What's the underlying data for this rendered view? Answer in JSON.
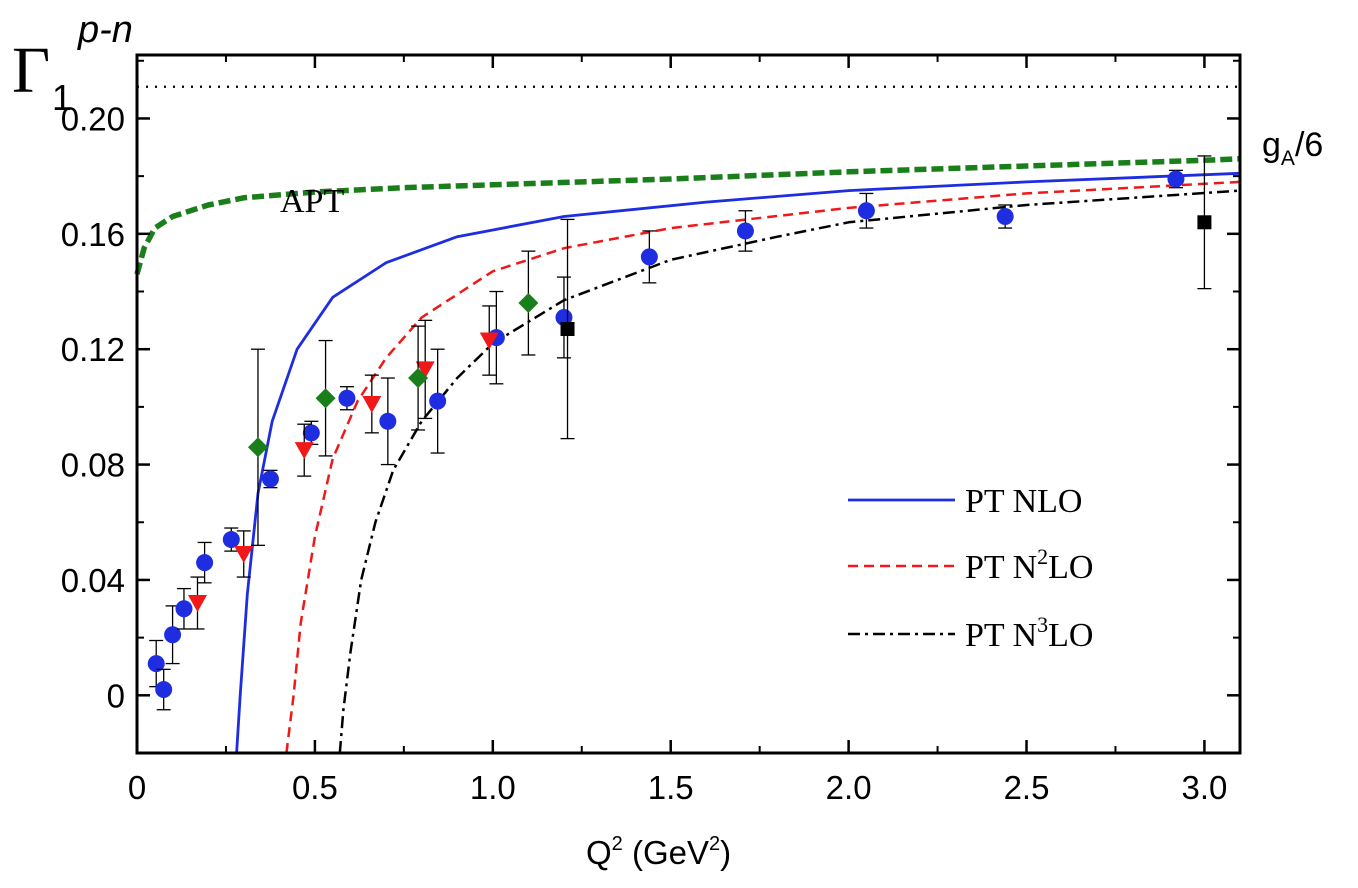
{
  "chart_data": {
    "type": "scatter",
    "ylabel": {
      "main": "Γ",
      "sub": "1",
      "sup": "p-n"
    },
    "xlabel": {
      "q": "Q",
      "sup1": "2",
      "mid": " (GeV",
      "sup2": "2",
      "end": ")"
    },
    "xlim": [
      0,
      3.1
    ],
    "ylim": [
      -0.02,
      0.222
    ],
    "xticks": [
      0,
      0.5,
      1.0,
      1.5,
      2.0,
      2.5,
      3.0
    ],
    "xtick_labels": [
      "0",
      "0.5",
      "1.0",
      "1.5",
      "2.0",
      "2.5",
      "3.0"
    ],
    "yticks": [
      0,
      0.04,
      0.08,
      0.12,
      0.16,
      0.2
    ],
    "ytick_labels": [
      "0",
      "0.04",
      "0.08",
      "0.12",
      "0.16",
      "0.20"
    ],
    "ga_line": {
      "y": 0.211,
      "label_main": "g",
      "label_sub": "A",
      "label_tail": "/6"
    },
    "apt_label": "APT",
    "curves": [
      {
        "key": "apt",
        "name": "APT",
        "color": "#1a7f1a",
        "style": "dash-thick",
        "points": [
          [
            0.0,
            0.146
          ],
          [
            0.02,
            0.155
          ],
          [
            0.05,
            0.162
          ],
          [
            0.1,
            0.166
          ],
          [
            0.2,
            0.17
          ],
          [
            0.3,
            0.1725
          ],
          [
            0.5,
            0.1745
          ],
          [
            0.75,
            0.176
          ],
          [
            1.0,
            0.177
          ],
          [
            1.5,
            0.179
          ],
          [
            2.0,
            0.1815
          ],
          [
            2.5,
            0.1835
          ],
          [
            3.0,
            0.1855
          ],
          [
            3.1,
            0.186
          ]
        ]
      },
      {
        "key": "nlo",
        "name": "PT NLO",
        "color": "#1f2de0",
        "style": "solid",
        "points": [
          [
            0.28,
            -0.02
          ],
          [
            0.29,
            0.0
          ],
          [
            0.31,
            0.035
          ],
          [
            0.34,
            0.07
          ],
          [
            0.38,
            0.095
          ],
          [
            0.45,
            0.12
          ],
          [
            0.55,
            0.138
          ],
          [
            0.7,
            0.15
          ],
          [
            0.9,
            0.159
          ],
          [
            1.2,
            0.166
          ],
          [
            1.6,
            0.171
          ],
          [
            2.0,
            0.175
          ],
          [
            2.5,
            0.178
          ],
          [
            3.1,
            0.181
          ]
        ]
      },
      {
        "key": "n2lo",
        "name": "PT N²LO",
        "color": "#f01818",
        "style": "dash",
        "points": [
          [
            0.42,
            -0.02
          ],
          [
            0.44,
            0.0
          ],
          [
            0.46,
            0.025
          ],
          [
            0.5,
            0.055
          ],
          [
            0.55,
            0.082
          ],
          [
            0.62,
            0.102
          ],
          [
            0.7,
            0.117
          ],
          [
            0.8,
            0.131
          ],
          [
            1.0,
            0.147
          ],
          [
            1.2,
            0.155
          ],
          [
            1.5,
            0.162
          ],
          [
            2.0,
            0.169
          ],
          [
            2.5,
            0.174
          ],
          [
            3.1,
            0.178
          ]
        ]
      },
      {
        "key": "n3lo",
        "name": "PT N³LO",
        "color": "#000000",
        "style": "dashdot",
        "points": [
          [
            0.57,
            -0.02
          ],
          [
            0.58,
            -0.005
          ],
          [
            0.6,
            0.015
          ],
          [
            0.63,
            0.04
          ],
          [
            0.67,
            0.06
          ],
          [
            0.72,
            0.078
          ],
          [
            0.8,
            0.095
          ],
          [
            0.9,
            0.11
          ],
          [
            1.0,
            0.122
          ],
          [
            1.2,
            0.137
          ],
          [
            1.5,
            0.151
          ],
          [
            1.8,
            0.159
          ],
          [
            2.0,
            0.164
          ],
          [
            2.5,
            0.17
          ],
          [
            3.1,
            0.175
          ]
        ]
      }
    ],
    "legend": [
      {
        "key": "nlo",
        "label_a": "PT NLO",
        "sup": "",
        "label_b": ""
      },
      {
        "key": "n2lo",
        "label_a": "PT N",
        "sup": "2",
        "label_b": "LO"
      },
      {
        "key": "n3lo",
        "label_a": "PT N",
        "sup": "3",
        "label_b": "LO"
      }
    ],
    "series": [
      {
        "key": "circles",
        "marker": "circle",
        "color": "#1f2de0",
        "points": [
          [
            0.054,
            0.011,
            0.008
          ],
          [
            0.075,
            0.002,
            0.007
          ],
          [
            0.1,
            0.021,
            0.01
          ],
          [
            0.132,
            0.03,
            0.007
          ],
          [
            0.19,
            0.046,
            0.007
          ],
          [
            0.265,
            0.054,
            0.004
          ],
          [
            0.375,
            0.075,
            0.003
          ],
          [
            0.49,
            0.091,
            0.004
          ],
          [
            0.59,
            0.103,
            0.004
          ],
          [
            0.705,
            0.095,
            0.015
          ],
          [
            0.845,
            0.102,
            0.018
          ],
          [
            1.01,
            0.124,
            0.016
          ],
          [
            1.2,
            0.131,
            0.014
          ],
          [
            1.44,
            0.152,
            0.009
          ],
          [
            1.71,
            0.161,
            0.007
          ],
          [
            2.05,
            0.168,
            0.006
          ],
          [
            2.44,
            0.166,
            0.004
          ],
          [
            2.92,
            0.179,
            0.003
          ]
        ]
      },
      {
        "key": "triangles",
        "marker": "triangle-down",
        "color": "#f01818",
        "points": [
          [
            0.17,
            0.032,
            0.009
          ],
          [
            0.3,
            0.049,
            0.008
          ],
          [
            0.47,
            0.085,
            0.009
          ],
          [
            0.66,
            0.101,
            0.01
          ],
          [
            0.81,
            0.113,
            0.017
          ],
          [
            0.99,
            0.123,
            0.012
          ]
        ]
      },
      {
        "key": "diamonds",
        "marker": "diamond",
        "color": "#1a7f1a",
        "points": [
          [
            0.34,
            0.086,
            0.034
          ],
          [
            0.53,
            0.103,
            0.02
          ],
          [
            0.79,
            0.11,
            0.018
          ],
          [
            1.1,
            0.136,
            0.018
          ]
        ]
      },
      {
        "key": "squares",
        "marker": "square",
        "color": "#000000",
        "points": [
          [
            1.21,
            0.127,
            0.038
          ],
          [
            3.0,
            0.164,
            0.023
          ]
        ]
      }
    ]
  }
}
